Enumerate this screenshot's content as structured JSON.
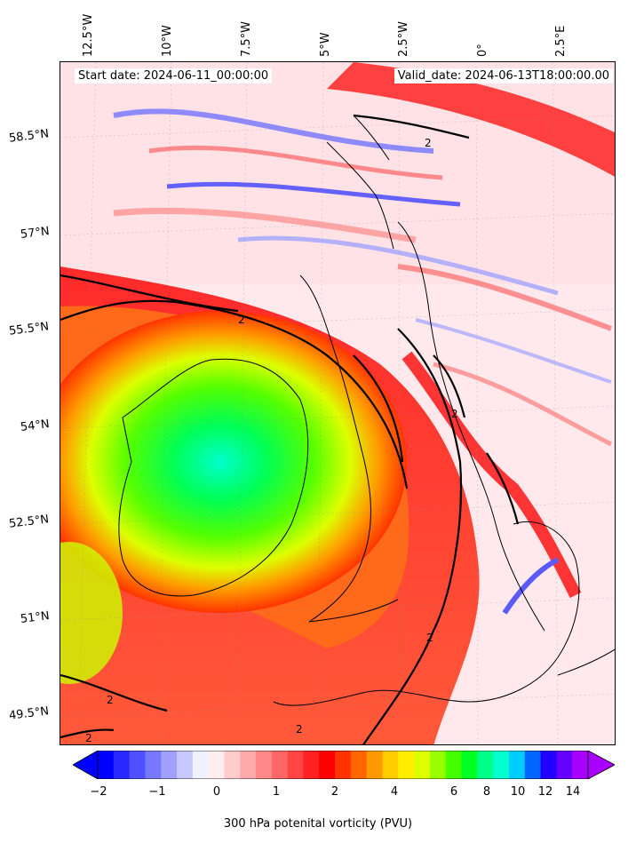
{
  "annotations": {
    "start_date": "Start date: 2024-06-11_00:00:00",
    "valid_date": "Valid_date: 2024-06-13T18:00:00.00"
  },
  "longitude_labels": [
    "12.5°W",
    "10°W",
    "7.5°W",
    "5°W",
    "2.5°W",
    "0°",
    "2.5°E"
  ],
  "latitude_labels": [
    "58.5°N",
    "57°N",
    "55.5°N",
    "54°N",
    "52.5°N",
    "51°N",
    "49.5°N"
  ],
  "contour_label": "2",
  "colorbar": {
    "label": "300 hPa potenital vorticity (PVU)",
    "ticks": [
      "−2",
      "−1",
      "0",
      "1",
      "2",
      "4",
      "6",
      "8",
      "10",
      "12",
      "14"
    ],
    "colors": [
      "#0000ff",
      "#2828ff",
      "#5050ff",
      "#7878ff",
      "#a0a0ff",
      "#c8c8ff",
      "#f0f0ff",
      "#ffeeee",
      "#ffcccc",
      "#ffaaaa",
      "#ff8888",
      "#ff6666",
      "#ff4444",
      "#ff2222",
      "#ff0000",
      "#ff3300",
      "#ff6600",
      "#ff9900",
      "#ffcc00",
      "#ffee00",
      "#ddff00",
      "#99ff00",
      "#44ff00",
      "#00ff22",
      "#00ff88",
      "#00ffcc",
      "#00ccff",
      "#0066ff",
      "#2200ff",
      "#6600ff",
      "#aa00ff"
    ]
  }
}
